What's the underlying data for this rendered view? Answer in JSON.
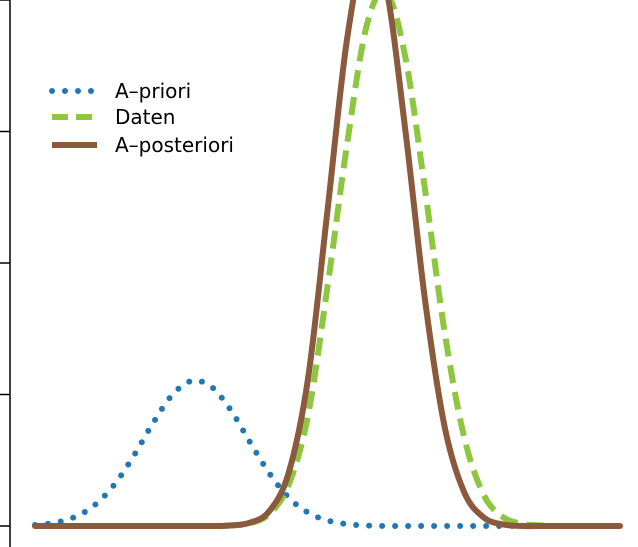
{
  "chart_data": {
    "type": "line",
    "title": "",
    "xlabel": "",
    "ylabel": "",
    "xlim": [
      -3,
      3
    ],
    "ylim": [
      0,
      2
    ],
    "grid": false,
    "legend_position": "top-left",
    "y_ticks": [
      0,
      0.5,
      1,
      1.5,
      2
    ],
    "x": [
      -3.0,
      -2.8,
      -2.6,
      -2.4,
      -2.2,
      -2.0,
      -1.8,
      -1.6,
      -1.4,
      -1.2,
      -1.0,
      -0.8,
      -0.6,
      -0.4,
      -0.2,
      0.0,
      0.2,
      0.4,
      0.6,
      0.8,
      1.0,
      1.2,
      1.4,
      1.6,
      1.8,
      2.0,
      2.2,
      2.4,
      2.6,
      2.8,
      3.0
    ],
    "series": [
      {
        "name": "A–priori",
        "color": "#1f77b4",
        "style": "dotted",
        "values": [
          0.004,
          0.012,
          0.033,
          0.076,
          0.151,
          0.259,
          0.385,
          0.495,
          0.551,
          0.532,
          0.445,
          0.322,
          0.202,
          0.109,
          0.051,
          0.021,
          0.007,
          0.002,
          0.0,
          0.0,
          0.0,
          0.0,
          0.0,
          0.0,
          0.0,
          0.0,
          0.0,
          0.0,
          0.0,
          0.0,
          0.0
        ]
      },
      {
        "name": "Daten",
        "color": "#8dc63f",
        "style": "dashed",
        "values": [
          0.0,
          0.0,
          0.0,
          0.0,
          0.0,
          0.0,
          0.0,
          0.0,
          0.0,
          0.0,
          0.002,
          0.01,
          0.045,
          0.155,
          0.42,
          0.91,
          1.45,
          1.9,
          2.03,
          1.78,
          1.28,
          0.74,
          0.34,
          0.12,
          0.034,
          0.008,
          0.002,
          0.0,
          0.0,
          0.0,
          0.0
        ]
      },
      {
        "name": "A–posteriori",
        "color": "#8b5a3c",
        "style": "solid",
        "values": [
          0.0,
          0.0,
          0.0,
          0.0,
          0.0,
          0.0,
          0.0,
          0.0,
          0.0,
          0.0,
          0.002,
          0.012,
          0.055,
          0.2,
          0.56,
          1.2,
          1.85,
          2.2,
          2.05,
          1.5,
          0.86,
          0.38,
          0.13,
          0.033,
          0.006,
          0.0,
          0.0,
          0.0,
          0.0,
          0.0,
          0.0
        ]
      }
    ]
  }
}
